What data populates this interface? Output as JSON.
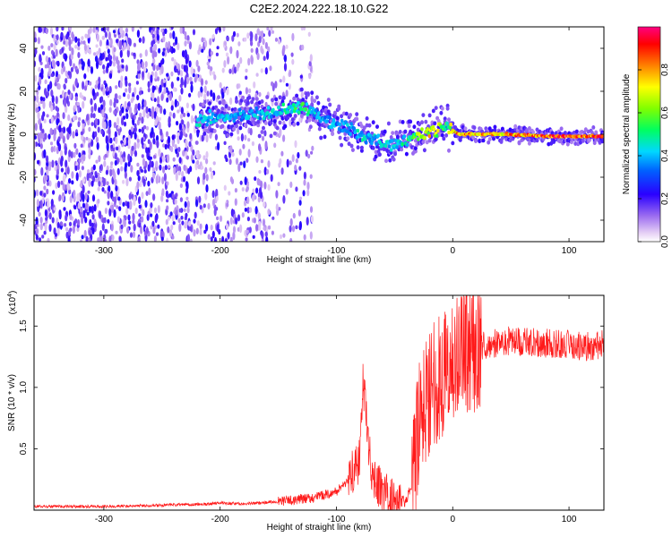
{
  "title": "C2E2.2024.222.18.10.G22",
  "chart_data": [
    {
      "type": "heatmap",
      "title": "C2E2.2024.222.18.10.G22",
      "xlabel": "Height of straight line (km)",
      "ylabel": "Frequency (Hz)",
      "xlim": [
        -360,
        130
      ],
      "ylim": [
        -50,
        50
      ],
      "x_ticks": [
        -300,
        -200,
        -100,
        0,
        100
      ],
      "y_ticks": [
        -40,
        -20,
        0,
        20,
        40
      ],
      "colorbar": {
        "label": "Normalized spectral amplitude",
        "range": [
          0.0,
          1.0
        ],
        "ticks": [
          0.0,
          0.2,
          0.4,
          0.6,
          0.8
        ]
      },
      "ridge": {
        "x": [
          -220,
          -180,
          -150,
          -130,
          -120,
          -100,
          -80,
          -60,
          -50,
          -40,
          -20,
          -5,
          5,
          20,
          50,
          80,
          100,
          130
        ],
        "freq": [
          6,
          9,
          10,
          13,
          10,
          5,
          0,
          -4,
          -5,
          -3,
          1,
          4,
          0,
          0,
          0,
          -1,
          -1,
          -1
        ],
        "amplitude": [
          0.45,
          0.4,
          0.45,
          0.55,
          0.45,
          0.4,
          0.45,
          0.45,
          0.45,
          0.5,
          0.75,
          0.6,
          0.85,
          0.8,
          0.85,
          0.9,
          0.95,
          0.95
        ]
      },
      "noise_region_x": [
        -360,
        -120
      ]
    },
    {
      "type": "line",
      "xlabel": "Height of straight line (km)",
      "ylabel": "SNR (10 * v/v)",
      "y_scale_label": "(x10",
      "y_scale_exp": "4",
      "xlim": [
        -360,
        130
      ],
      "ylim": [
        0.0,
        1.75
      ],
      "x_ticks": [
        -300,
        -200,
        -100,
        0,
        100
      ],
      "y_ticks": [
        0.5,
        1.0,
        1.5
      ],
      "series": [
        {
          "color": "#ff0000",
          "x": [
            -360,
            -300,
            -250,
            -210,
            -200,
            -180,
            -150,
            -120,
            -100,
            -90,
            -80,
            -77,
            -70,
            -60,
            -50,
            -40,
            -35,
            -30,
            -25,
            -20,
            -10,
            0,
            10,
            20,
            30,
            50,
            80,
            100,
            120,
            130
          ],
          "y": [
            0.03,
            0.03,
            0.04,
            0.05,
            0.06,
            0.05,
            0.07,
            0.1,
            0.15,
            0.25,
            0.4,
            1.05,
            0.3,
            0.15,
            0.08,
            0.07,
            0.2,
            0.6,
            0.85,
            1.0,
            1.1,
            1.2,
            1.3,
            1.33,
            1.35,
            1.38,
            1.36,
            1.35,
            1.33,
            1.35
          ]
        }
      ]
    }
  ]
}
